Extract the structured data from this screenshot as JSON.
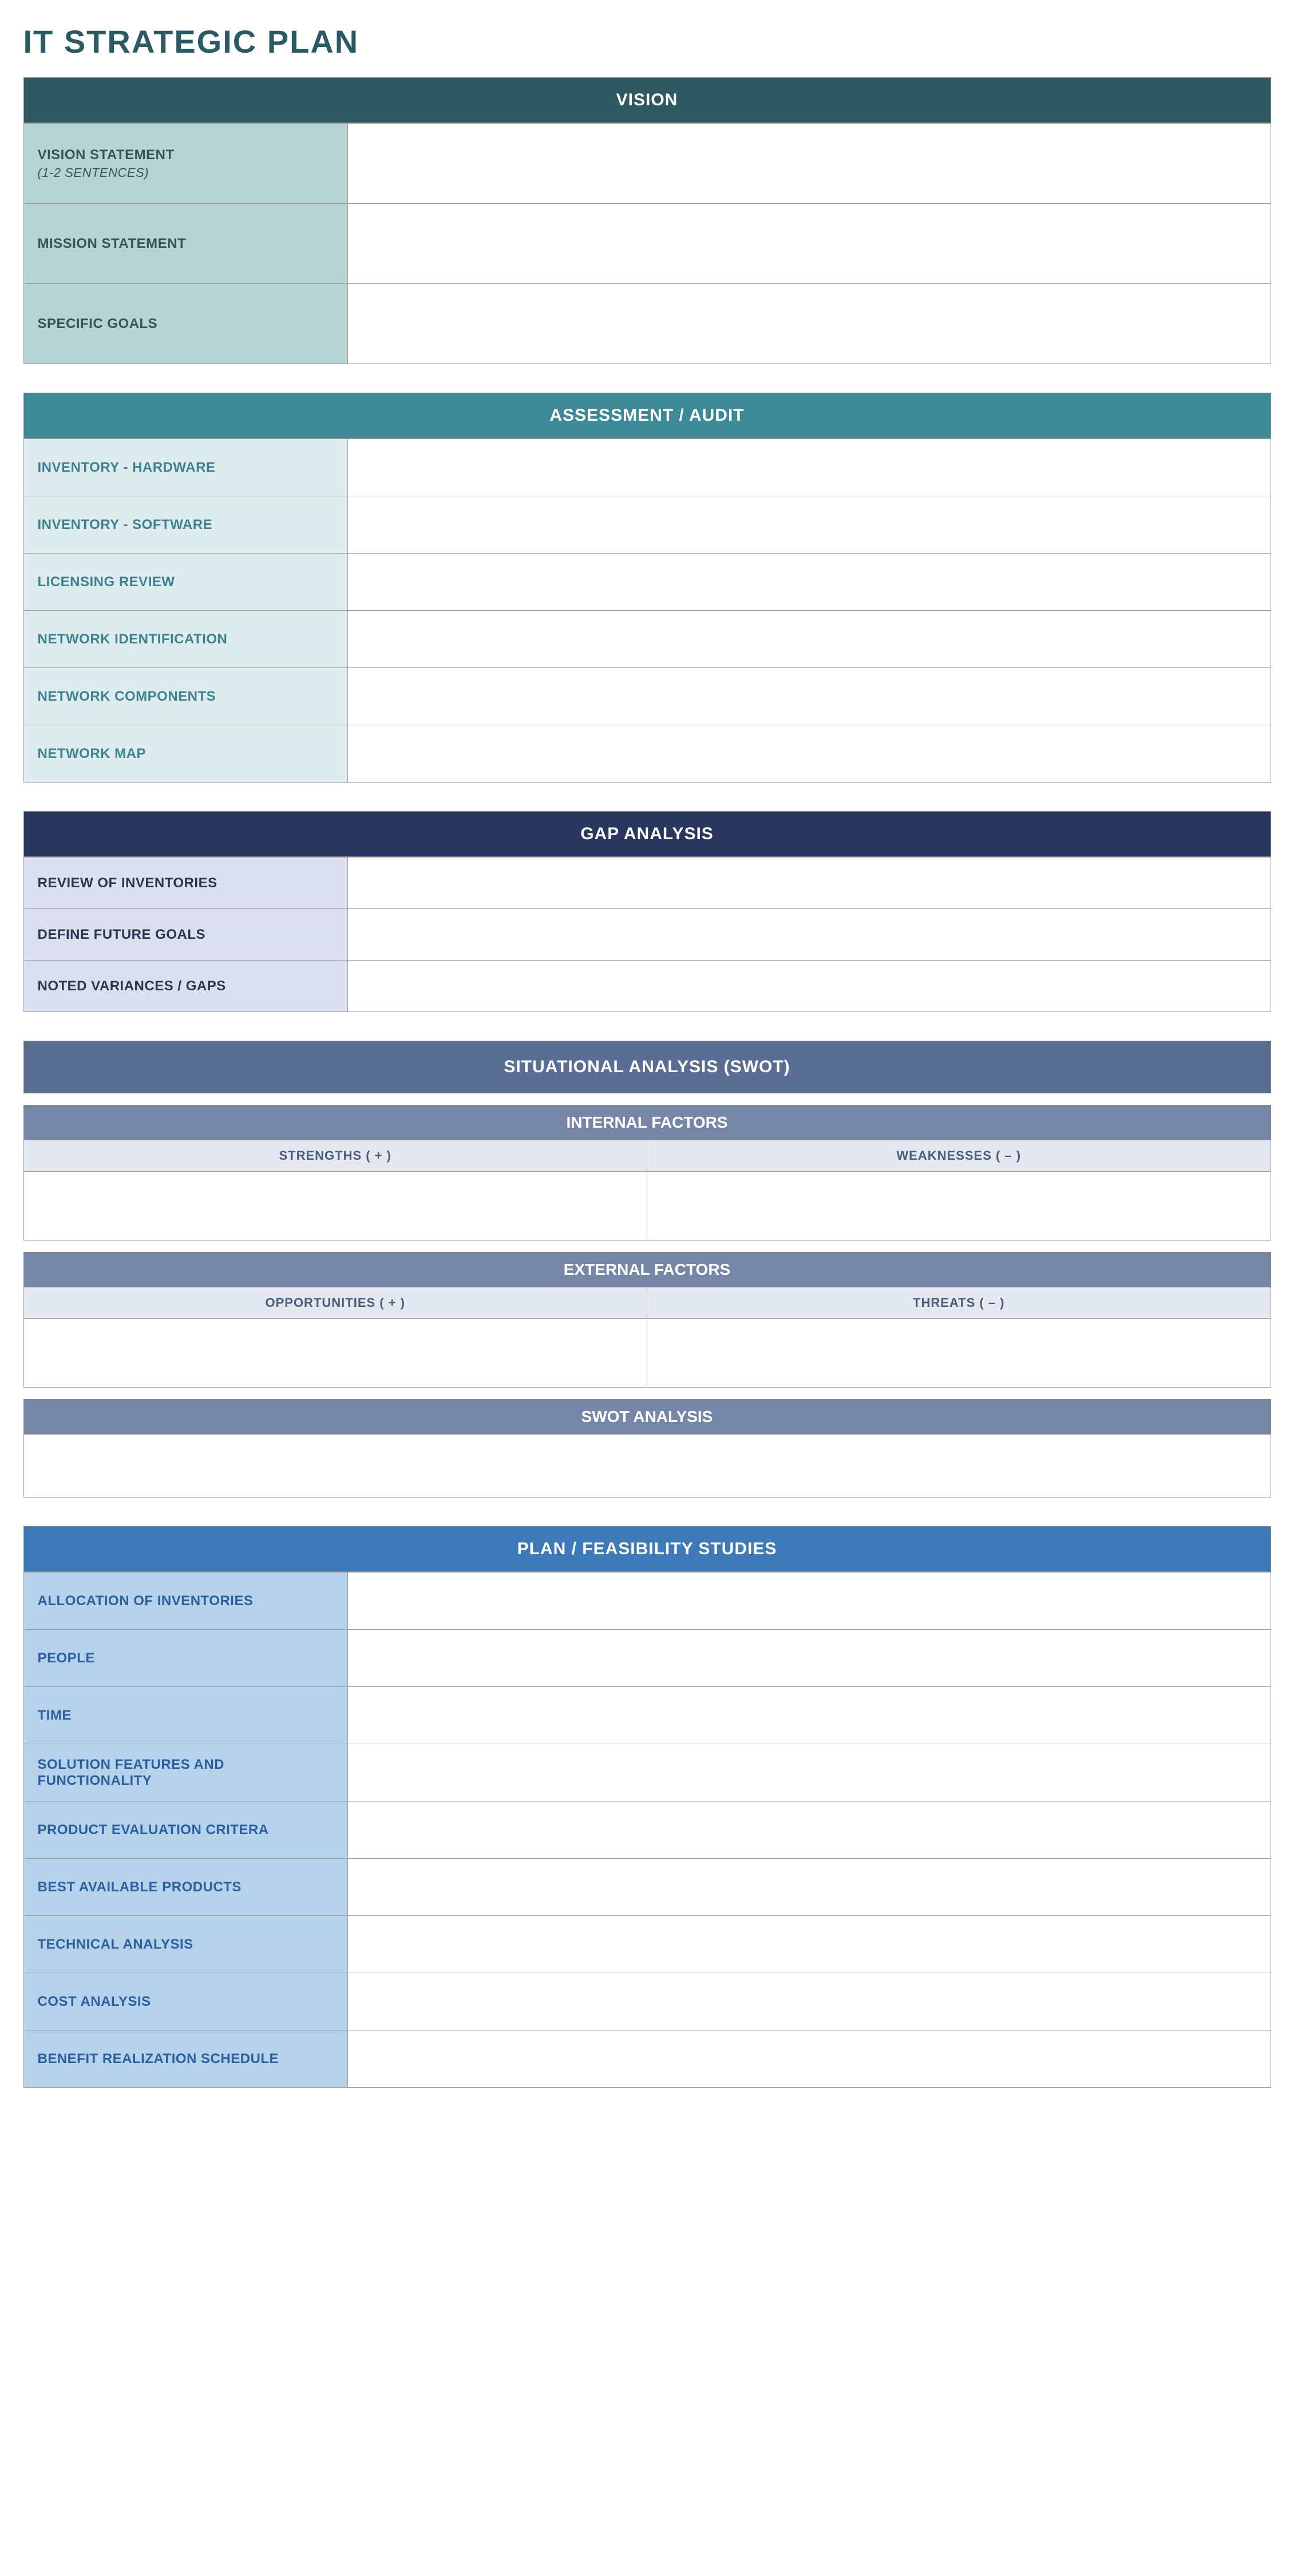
{
  "page_title": "IT STRATEGIC PLAN",
  "title_color": "#2a5a63",
  "sections": {
    "vision": {
      "header": "VISION",
      "header_bg": "#2f5a61",
      "label_bg": "#b6d4d4",
      "label_color": "#3a5357",
      "rows": [
        {
          "label": "VISION STATEMENT",
          "sub": "(1-2 SENTENCES)",
          "value": ""
        },
        {
          "label": "MISSION STATEMENT",
          "value": ""
        },
        {
          "label": "SPECIFIC GOALS",
          "value": ""
        }
      ],
      "row_height": "tall"
    },
    "assessment": {
      "header": "ASSESSMENT / AUDIT",
      "header_bg": "#3e8997",
      "label_bg": "#dfeced",
      "label_color": "#3c8291",
      "rows": [
        {
          "label": "INVENTORY - HARDWARE",
          "value": ""
        },
        {
          "label": "INVENTORY - SOFTWARE",
          "value": ""
        },
        {
          "label": "LICENSING REVIEW",
          "value": ""
        },
        {
          "label": "NETWORK IDENTIFICATION",
          "value": ""
        },
        {
          "label": "NETWORK COMPONENTS",
          "value": ""
        },
        {
          "label": "NETWORK MAP",
          "value": ""
        }
      ],
      "row_height": "med"
    },
    "gap": {
      "header": "GAP ANALYSIS",
      "header_bg": "#29375f",
      "label_bg": "#dcdff0",
      "label_color": "#2c3450",
      "rows": [
        {
          "label": "REVIEW OF INVENTORIES",
          "value": ""
        },
        {
          "label": "DEFINE FUTURE GOALS",
          "value": ""
        },
        {
          "label": "NOTED VARIANCES / GAPS",
          "value": ""
        }
      ],
      "row_height": "short"
    },
    "swot": {
      "main_header": "SITUATIONAL ANALYSIS (SWOT)",
      "main_header_bg": "#5a6e93",
      "sub_bar_bg": "#7586a6",
      "col_header_bg": "#e4e8f0",
      "col_header_color": "#4a5a78",
      "internal": {
        "title": "INTERNAL FACTORS",
        "cols": [
          "STRENGTHS ( + )",
          "WEAKNESSES ( – )"
        ],
        "values": [
          "",
          ""
        ]
      },
      "external": {
        "title": "EXTERNAL FACTORS",
        "cols": [
          "OPPORTUNITIES ( + )",
          "THREATS ( – )"
        ],
        "values": [
          "",
          ""
        ]
      },
      "analysis": {
        "title": "SWOT ANALYSIS",
        "value": ""
      }
    },
    "plan": {
      "header": "PLAN / FEASIBILITY STUDIES",
      "header_bg": "#3e79b8",
      "label_bg": "#b6d1ea",
      "label_color": "#2a5fa0",
      "rows": [
        {
          "label": "ALLOCATION OF INVENTORIES",
          "value": ""
        },
        {
          "label": "PEOPLE",
          "value": ""
        },
        {
          "label": "TIME",
          "value": ""
        },
        {
          "label": "SOLUTION FEATURES AND FUNCTIONALITY",
          "value": ""
        },
        {
          "label": "PRODUCT EVALUATION CRITERA",
          "value": ""
        },
        {
          "label": "BEST AVAILABLE PRODUCTS",
          "value": ""
        },
        {
          "label": "TECHNICAL ANALYSIS",
          "value": ""
        },
        {
          "label": "COST ANALYSIS",
          "value": ""
        },
        {
          "label": "BENEFIT REALIZATION SCHEDULE",
          "value": ""
        }
      ],
      "row_height": "med"
    }
  }
}
